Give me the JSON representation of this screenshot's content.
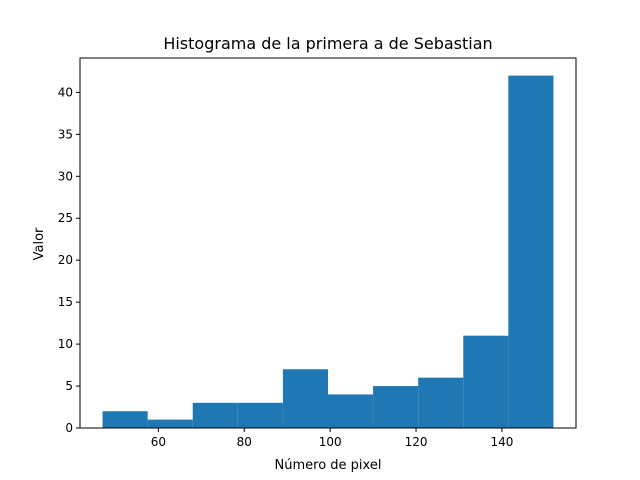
{
  "chart_data": {
    "type": "bar",
    "title": "Histograma de la primera a de Sebastian",
    "xlabel": "Número de pixel",
    "ylabel": "Valor",
    "bin_edges": [
      47,
      57.5,
      68,
      78.5,
      89,
      99.5,
      110,
      120.5,
      131,
      141.5,
      152
    ],
    "values": [
      2,
      1,
      3,
      3,
      7,
      4,
      5,
      6,
      11,
      42
    ],
    "xlim": [
      41.75,
      157.25
    ],
    "ylim": [
      0,
      44.1
    ],
    "xticks": [
      60,
      80,
      100,
      120,
      140
    ],
    "yticks": [
      0,
      5,
      10,
      15,
      20,
      25,
      30,
      35,
      40
    ],
    "grid": false,
    "bar_color": "#1f77b4"
  }
}
